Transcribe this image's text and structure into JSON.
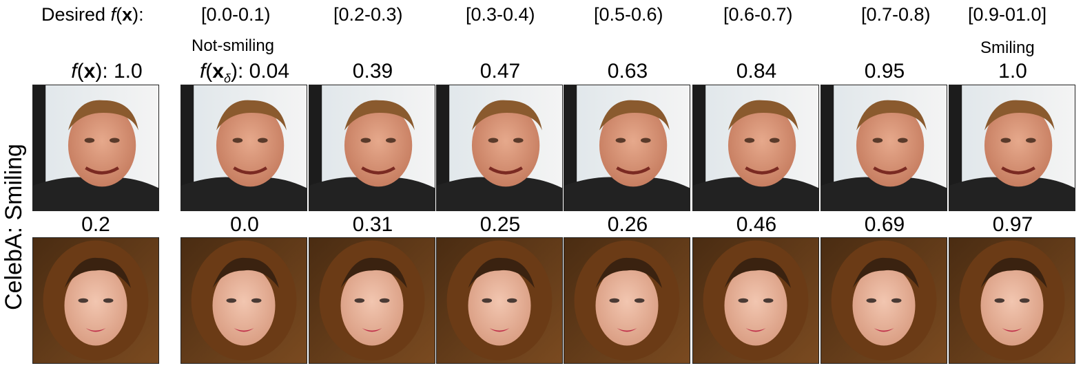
{
  "header": {
    "desired_label": "Desired",
    "f_symbol": "f",
    "x_symbol": "x",
    "desired_suffix": "):",
    "ranges": [
      "[0.0-0.1)",
      "[0.2-0.3)",
      "[0.3-0.4)",
      "[0.5-0.6)",
      "[0.6-0.7)",
      "[0.7-0.8)",
      "[0.9-01.0]"
    ]
  },
  "annotations": {
    "left": "Not-smiling",
    "right": "Smiling"
  },
  "row_label": "CelebA: Smiling",
  "row1": {
    "original_label_f": "f",
    "original_label_x": "x",
    "original_label_rest": "): 1.0",
    "delta_label_f": "f",
    "delta_label_x": "x",
    "delta_label_sub": "δ",
    "delta_label_rest": "): 0.04",
    "values": [
      "0.39",
      "0.47",
      "0.63",
      "0.84",
      "0.95",
      "1.0"
    ]
  },
  "row2": {
    "original_value": "0.2",
    "values": [
      "0.0",
      "0.31",
      "0.25",
      "0.26",
      "0.46",
      "0.69",
      "0.97"
    ]
  }
}
